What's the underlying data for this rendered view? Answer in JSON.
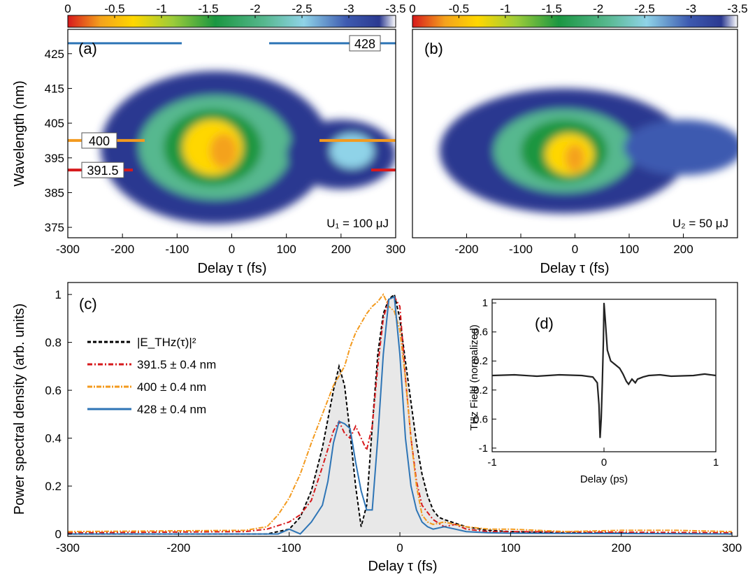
{
  "chart_data": [
    {
      "panel": "a",
      "type": "heatmap",
      "panel_label": "(a)",
      "xlabel": "Delay τ (fs)",
      "ylabel": "Wavelength (nm)",
      "xlim": [
        -300,
        300
      ],
      "ylim": [
        372,
        432
      ],
      "xticks": [
        "-300",
        "-200",
        "-100",
        "0",
        "100",
        "200",
        "300"
      ],
      "yticks": [
        "375",
        "385",
        "395",
        "405",
        "415",
        "425"
      ],
      "colorbar": {
        "ticks": [
          "0",
          "-0.5",
          "-1",
          "-1.5",
          "-2",
          "-2.5",
          "-3",
          "-3.5"
        ],
        "range": [
          0,
          -3.5
        ],
        "colors": [
          "#d7191c",
          "#ffd700",
          "#1a9641",
          "#8fd3e8",
          "#2b3990",
          "#ffffff"
        ]
      },
      "annotation": "U₁ = 100 μJ",
      "marker_lines": [
        {
          "label": "428",
          "y": 428,
          "color": "#2e75b6"
        },
        {
          "label": "400",
          "y": 400,
          "color": "#f39a1e"
        },
        {
          "label": "391.5",
          "y": 391.5,
          "color": "#d7191c"
        }
      ],
      "blobs": [
        {
          "cx": -30,
          "cy": 398,
          "rx": 210,
          "ry": 22,
          "v": -3.3
        },
        {
          "cx": -30,
          "cy": 398,
          "rx": 140,
          "ry": 15,
          "v": -2.3
        },
        {
          "cx": -35,
          "cy": 398,
          "rx": 90,
          "ry": 11,
          "v": -1.6
        },
        {
          "cx": -35,
          "cy": 398,
          "rx": 55,
          "ry": 8,
          "v": -0.9
        },
        {
          "cx": -15,
          "cy": 397,
          "rx": 25,
          "ry": 5,
          "v": -0.3
        },
        {
          "cx": 200,
          "cy": 396,
          "rx": 100,
          "ry": 10,
          "v": -3.2
        },
        {
          "cx": 220,
          "cy": 397,
          "rx": 40,
          "ry": 5,
          "v": -2.6
        }
      ]
    },
    {
      "panel": "b",
      "type": "heatmap",
      "panel_label": "(b)",
      "xlabel": "Delay τ (fs)",
      "ylabel": "",
      "xlim": [
        -300,
        300
      ],
      "ylim": [
        372,
        432
      ],
      "xticks": [
        "-200",
        "-100",
        "0",
        "100",
        "200"
      ],
      "colorbar": {
        "ticks": [
          "0",
          "-0.5",
          "-1",
          "-1.5",
          "-2",
          "-2.5",
          "-3",
          "-3.5"
        ],
        "range": [
          0,
          -3.5
        ]
      },
      "annotation": "U₂ = 50 μJ",
      "blobs": [
        {
          "cx": -20,
          "cy": 397,
          "rx": 230,
          "ry": 18,
          "v": -3.3
        },
        {
          "cx": -20,
          "cy": 397,
          "rx": 130,
          "ry": 12,
          "v": -2.2
        },
        {
          "cx": -20,
          "cy": 397,
          "rx": 80,
          "ry": 9,
          "v": -1.5
        },
        {
          "cx": -10,
          "cy": 396,
          "rx": 45,
          "ry": 6,
          "v": -0.9
        },
        {
          "cx": 0,
          "cy": 395,
          "rx": 18,
          "ry": 4,
          "v": -0.3
        },
        {
          "cx": 200,
          "cy": 398,
          "rx": 110,
          "ry": 8,
          "v": -3.0
        }
      ]
    },
    {
      "panel": "c",
      "type": "line",
      "panel_label": "(c)",
      "xlabel": "Delay τ (fs)",
      "ylabel": "Power spectral density (arb. units)",
      "xlim": [
        -300,
        305
      ],
      "ylim": [
        -0.01,
        1.05
      ],
      "xticks": [
        "-300",
        "-200",
        "-100",
        "0",
        "100",
        "200",
        "300"
      ],
      "yticks": [
        "0",
        "0.2",
        "0.4",
        "0.6",
        "0.8",
        "1"
      ],
      "legend_position": "top-left",
      "series": [
        {
          "name": "|E_THz(τ)|²",
          "color": "#000000",
          "dash": "5,3",
          "fill": "#e8e8e8",
          "x": [
            -300,
            -120,
            -100,
            -90,
            -80,
            -70,
            -60,
            -55,
            -50,
            -45,
            -40,
            -35,
            -30,
            -25,
            -20,
            -15,
            -10,
            -5,
            0,
            5,
            10,
            15,
            20,
            25,
            30,
            35,
            40,
            50,
            60,
            80,
            100,
            150,
            300
          ],
          "y": [
            0,
            0,
            0.02,
            0.07,
            0.18,
            0.36,
            0.6,
            0.7,
            0.62,
            0.42,
            0.2,
            0.03,
            0.12,
            0.45,
            0.75,
            0.92,
            0.98,
            1.0,
            0.9,
            0.72,
            0.55,
            0.38,
            0.25,
            0.16,
            0.1,
            0.07,
            0.06,
            0.045,
            0.03,
            0.015,
            0.01,
            0.005,
            0
          ]
        },
        {
          "name": "391.5 ± 0.4 nm",
          "color": "#d7191c",
          "dash": "7,3,2,3",
          "x": [
            -300,
            -140,
            -120,
            -100,
            -90,
            -80,
            -70,
            -60,
            -55,
            -50,
            -45,
            -40,
            -35,
            -30,
            -25,
            -20,
            -15,
            -10,
            -5,
            0,
            5,
            10,
            15,
            20,
            30,
            40,
            50,
            60,
            80,
            100,
            300
          ],
          "y": [
            0.005,
            0.01,
            0.02,
            0.05,
            0.08,
            0.14,
            0.28,
            0.43,
            0.47,
            0.42,
            0.4,
            0.45,
            0.4,
            0.35,
            0.45,
            0.7,
            0.9,
            0.98,
            0.99,
            0.95,
            0.65,
            0.4,
            0.22,
            0.12,
            0.06,
            0.03,
            0.04,
            0.02,
            0.01,
            0.01,
            0.005
          ]
        },
        {
          "name": "400 ± 0.4 nm",
          "color": "#f39a1e",
          "dash": "7,2,2,2",
          "x": [
            -300,
            -140,
            -120,
            -110,
            -100,
            -90,
            -80,
            -70,
            -60,
            -55,
            -50,
            -45,
            -40,
            -35,
            -30,
            -25,
            -20,
            -15,
            -10,
            -5,
            0,
            5,
            10,
            15,
            20,
            25,
            30,
            40,
            60,
            80,
            100,
            150,
            200,
            250,
            300
          ],
          "y": [
            0.01,
            0.015,
            0.03,
            0.08,
            0.15,
            0.25,
            0.38,
            0.5,
            0.62,
            0.66,
            0.7,
            0.78,
            0.84,
            0.88,
            0.92,
            0.95,
            0.97,
            1.0,
            0.95,
            0.93,
            0.85,
            0.65,
            0.4,
            0.2,
            0.08,
            0.05,
            0.04,
            0.05,
            0.03,
            0.02,
            0.02,
            0.01,
            0.015,
            0.015,
            0.01
          ]
        },
        {
          "name": "428 ± 0.4 nm",
          "color": "#2e75b6",
          "dash": "",
          "x": [
            -300,
            -110,
            -100,
            -90,
            -80,
            -70,
            -65,
            -60,
            -55,
            -50,
            -45,
            -40,
            -35,
            -30,
            -25,
            -20,
            -15,
            -10,
            -5,
            0,
            5,
            10,
            15,
            20,
            25,
            30,
            40,
            50,
            60,
            80,
            100,
            300
          ],
          "y": [
            0,
            0,
            0.02,
            0.0,
            0.05,
            0.12,
            0.22,
            0.38,
            0.47,
            0.46,
            0.44,
            0.3,
            0.18,
            0.1,
            0.1,
            0.4,
            0.75,
            0.98,
            0.99,
            0.75,
            0.4,
            0.2,
            0.1,
            0.05,
            0.03,
            0.02,
            0.03,
            0.02,
            0.01,
            0.005,
            0.003,
            0
          ]
        }
      ]
    },
    {
      "panel": "d",
      "type": "line",
      "panel_label": "(d)",
      "xlabel": "Delay (ps)",
      "ylabel": "THz Field (normalized)",
      "xlim": [
        -1,
        1
      ],
      "ylim": [
        -1.05,
        1.05
      ],
      "xticks": [
        "-1",
        "0",
        "1"
      ],
      "yticks": [
        "-1",
        "-0.6",
        "-0.2",
        "0.2",
        "0.6",
        "1"
      ],
      "series": [
        {
          "name": "",
          "color": "#222222",
          "x": [
            -1,
            -0.8,
            -0.6,
            -0.4,
            -0.2,
            -0.1,
            -0.06,
            -0.045,
            -0.035,
            -0.025,
            -0.015,
            -0.005,
            0.0,
            0.01,
            0.03,
            0.06,
            0.1,
            0.14,
            0.17,
            0.2,
            0.22,
            0.25,
            0.28,
            0.3,
            0.35,
            0.4,
            0.5,
            0.6,
            0.8,
            0.9,
            1
          ],
          "y": [
            0,
            0.01,
            -0.01,
            0.01,
            0,
            -0.02,
            -0.1,
            -0.4,
            -0.86,
            -0.6,
            -0.1,
            0.5,
            1.0,
            0.8,
            0.35,
            0.2,
            0.15,
            0.1,
            0.02,
            -0.08,
            -0.12,
            -0.05,
            -0.1,
            -0.05,
            -0.02,
            0.0,
            0.01,
            -0.01,
            0.0,
            0.02,
            0.0
          ]
        }
      ]
    }
  ]
}
